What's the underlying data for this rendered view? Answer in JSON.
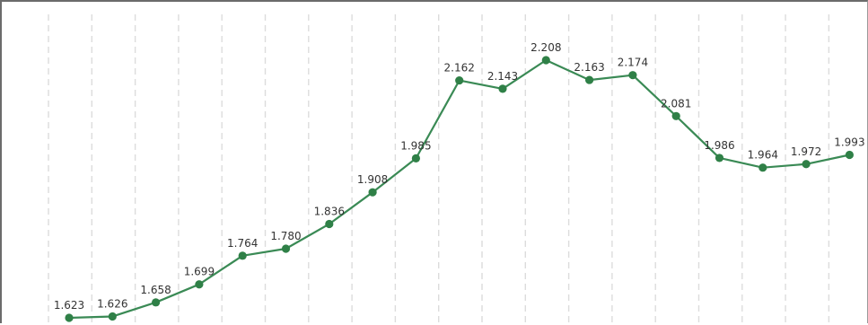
{
  "chart_data": {
    "type": "line",
    "title": "",
    "xlabel": "",
    "ylabel": "",
    "grid": "vertical dashed",
    "line_color": "#3a8a55",
    "marker_color": "#2f8047",
    "series": [
      {
        "values": [
          1.623,
          1.626,
          1.658,
          1.699,
          1.764,
          1.78,
          1.836,
          1.908,
          1.985,
          2.162,
          2.143,
          2.208,
          2.163,
          2.174,
          2.081,
          1.986,
          1.964,
          1.972,
          1.993
        ],
        "labels": [
          "1.623",
          "1.626",
          "1.658",
          "1.699",
          "1.764",
          "1.780",
          "1.836",
          "1.908",
          "1.985",
          "2.162",
          "2.143",
          "2.208",
          "2.163",
          "2.174",
          "2.081",
          "1.986",
          "1.964",
          "1.972",
          "1.993"
        ]
      }
    ]
  }
}
